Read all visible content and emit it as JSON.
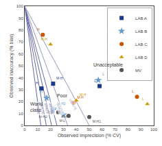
{
  "chart_data": {
    "type": "scatter",
    "title": "",
    "xlabel": "Observed imprecision (% CV)",
    "ylabel": "Observed inaccuracy (% bias)",
    "xlim": [
      0,
      100
    ],
    "ylim": [
      0,
      100
    ],
    "xticks": [
      0,
      10,
      20,
      30,
      40,
      50,
      60,
      70,
      80,
      90,
      100
    ],
    "yticks": [
      0,
      10,
      20,
      30,
      40,
      50,
      60,
      70,
      80,
      90,
      100
    ],
    "grid": false,
    "legend": "upper right",
    "boundary_lines": [
      {
        "x": [
          0,
          12.5
        ],
        "y": [
          100,
          0
        ],
        "color": "#6666aa",
        "label": "20%TE",
        "label_x": 10.5,
        "label_y": 14
      },
      {
        "x": [
          0,
          16.7
        ],
        "y": [
          100,
          0
        ],
        "color": "#6666aa",
        "label": "25%TE",
        "label_x": 14.0,
        "label_y": 14
      },
      {
        "x": [
          0,
          20.8
        ],
        "y": [
          100,
          0
        ],
        "color": "#6666aa",
        "label": "33%TE",
        "label_x": 17.5,
        "label_y": 14
      },
      {
        "x": [
          0,
          25.0
        ],
        "y": [
          100,
          0
        ],
        "color": "#6666aa",
        "label": "40%TE",
        "label_x": 21.0,
        "label_y": 14
      },
      {
        "x": [
          0,
          33.3
        ],
        "y": [
          100,
          0
        ],
        "color": "#9999bb",
        "label": "50%TE",
        "label_x": 27.5,
        "label_y": 14
      },
      {
        "x": [
          0,
          50.0
        ],
        "y": [
          100,
          0
        ],
        "color": "#9999bb",
        "label": "100%TE",
        "label_x": 37.5,
        "label_y": 18
      }
    ],
    "annotations": [
      {
        "text": "World\nclass",
        "x": 3,
        "y": 10
      },
      {
        "text": "Poor",
        "x": 24,
        "y": 22
      },
      {
        "text": "Unacceptable",
        "x": 52,
        "y": 47
      }
    ],
    "series": [
      {
        "name": "LAB A",
        "color": "#1a3a8c",
        "marker": "square",
        "x": [
          13,
          22,
          58
        ],
        "y": [
          31,
          35,
          33
        ],
        "labels": [
          "H",
          "M-H",
          "L"
        ]
      },
      {
        "name": "LAB B",
        "color": "#6699cc",
        "marker": "star",
        "x": [
          17,
          22,
          30,
          57
        ],
        "y": [
          23,
          13,
          9,
          38
        ],
        "labels": [
          "H",
          "M-H2",
          "M-L",
          "L"
        ]
      },
      {
        "name": "LAB C",
        "color": "#cc5500",
        "marker": "circle",
        "x": [
          14,
          38,
          87
        ],
        "y": [
          76,
          19,
          24
        ],
        "labels": [
          "H",
          "M-H",
          "L"
        ]
      },
      {
        "name": "LAB D",
        "color": "#cc9900",
        "marker": "triangle-up",
        "x": [
          20,
          40,
          95
        ],
        "y": [
          68,
          21,
          18
        ],
        "labels": [
          "M-H",
          "M-H",
          "L"
        ]
      },
      {
        "name": "MV",
        "color": "#555555",
        "marker": "circle",
        "x": [
          20,
          26,
          34,
          50
        ],
        "y": [
          11,
          11,
          8,
          7
        ],
        "labels": [
          "M-H2",
          "M-H",
          "M-L",
          "M-H1"
        ]
      }
    ]
  }
}
